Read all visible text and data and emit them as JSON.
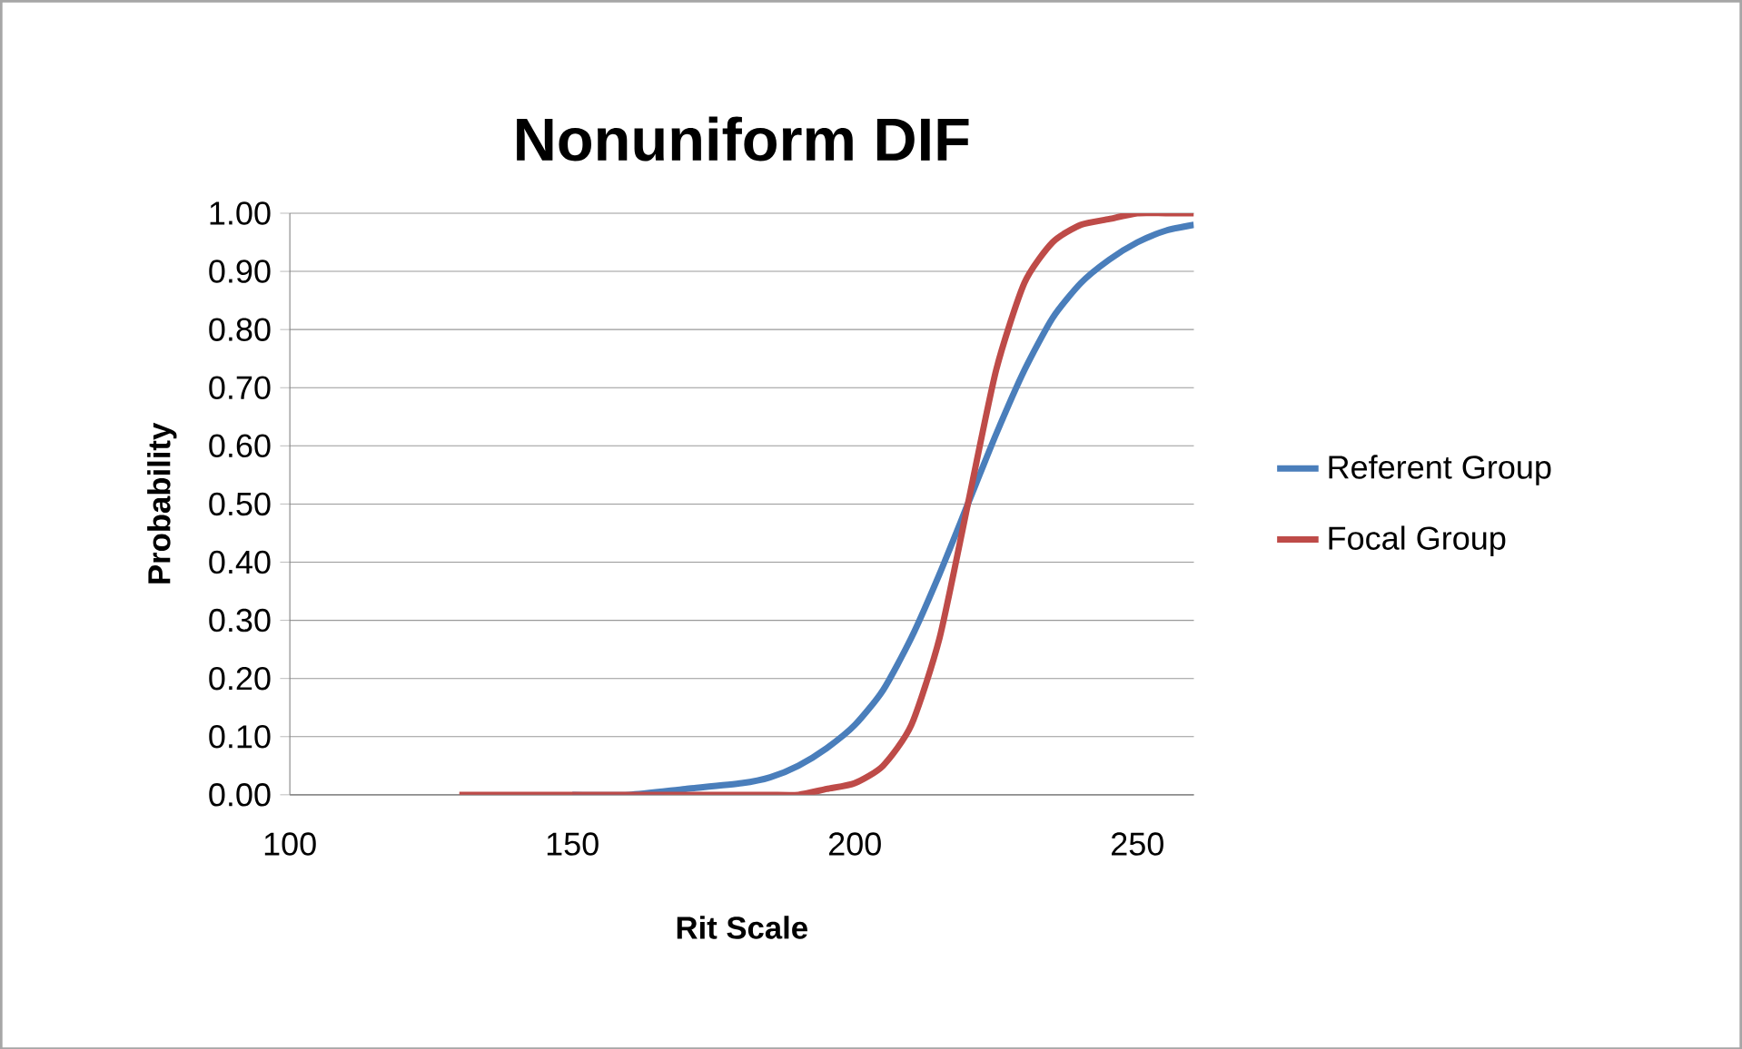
{
  "chart_data": {
    "type": "line",
    "title": "Nonuniform DIF",
    "xlabel": "Rit Scale",
    "ylabel": "Probability",
    "x": [
      130,
      140,
      150,
      160,
      170,
      180,
      185,
      190,
      195,
      200,
      205,
      210,
      215,
      220,
      225,
      230,
      235,
      240,
      245,
      250,
      255,
      260
    ],
    "series": [
      {
        "name": "Referent Group",
        "color": "#4a7ebb",
        "values": [
          null,
          null,
          0.0,
          0.0,
          0.01,
          0.02,
          0.03,
          0.05,
          0.08,
          0.12,
          0.18,
          0.27,
          0.38,
          0.5,
          0.62,
          0.73,
          0.82,
          0.88,
          0.92,
          0.95,
          0.97,
          0.98
        ]
      },
      {
        "name": "Focal Group",
        "color": "#be4b48",
        "values": [
          0.0,
          0.0,
          0.0,
          0.0,
          0.0,
          0.0,
          0.0,
          0.0,
          0.01,
          0.02,
          0.05,
          0.12,
          0.27,
          0.5,
          0.73,
          0.88,
          0.95,
          0.98,
          0.99,
          1.0,
          1.0,
          1.0
        ]
      }
    ],
    "xlim": [
      100,
      260
    ],
    "xticks": [
      100,
      150,
      200,
      250
    ],
    "ylim": [
      0,
      1
    ],
    "yticks": [
      {
        "value": 0,
        "label": "0.00"
      },
      {
        "value": 0.1,
        "label": "0.10"
      },
      {
        "value": 0.2,
        "label": "0.20"
      },
      {
        "value": 0.3,
        "label": "0.30"
      },
      {
        "value": 0.4,
        "label": "0.40"
      },
      {
        "value": 0.5,
        "label": "0.50"
      },
      {
        "value": 0.6,
        "label": "0.60"
      },
      {
        "value": 0.7,
        "label": "0.70"
      },
      {
        "value": 0.8,
        "label": "0.80"
      },
      {
        "value": 0.9,
        "label": "0.90"
      },
      {
        "value": 1,
        "label": "1.00"
      }
    ],
    "grid": "y",
    "legend": "right",
    "marker": "none",
    "line_style": "solid"
  }
}
